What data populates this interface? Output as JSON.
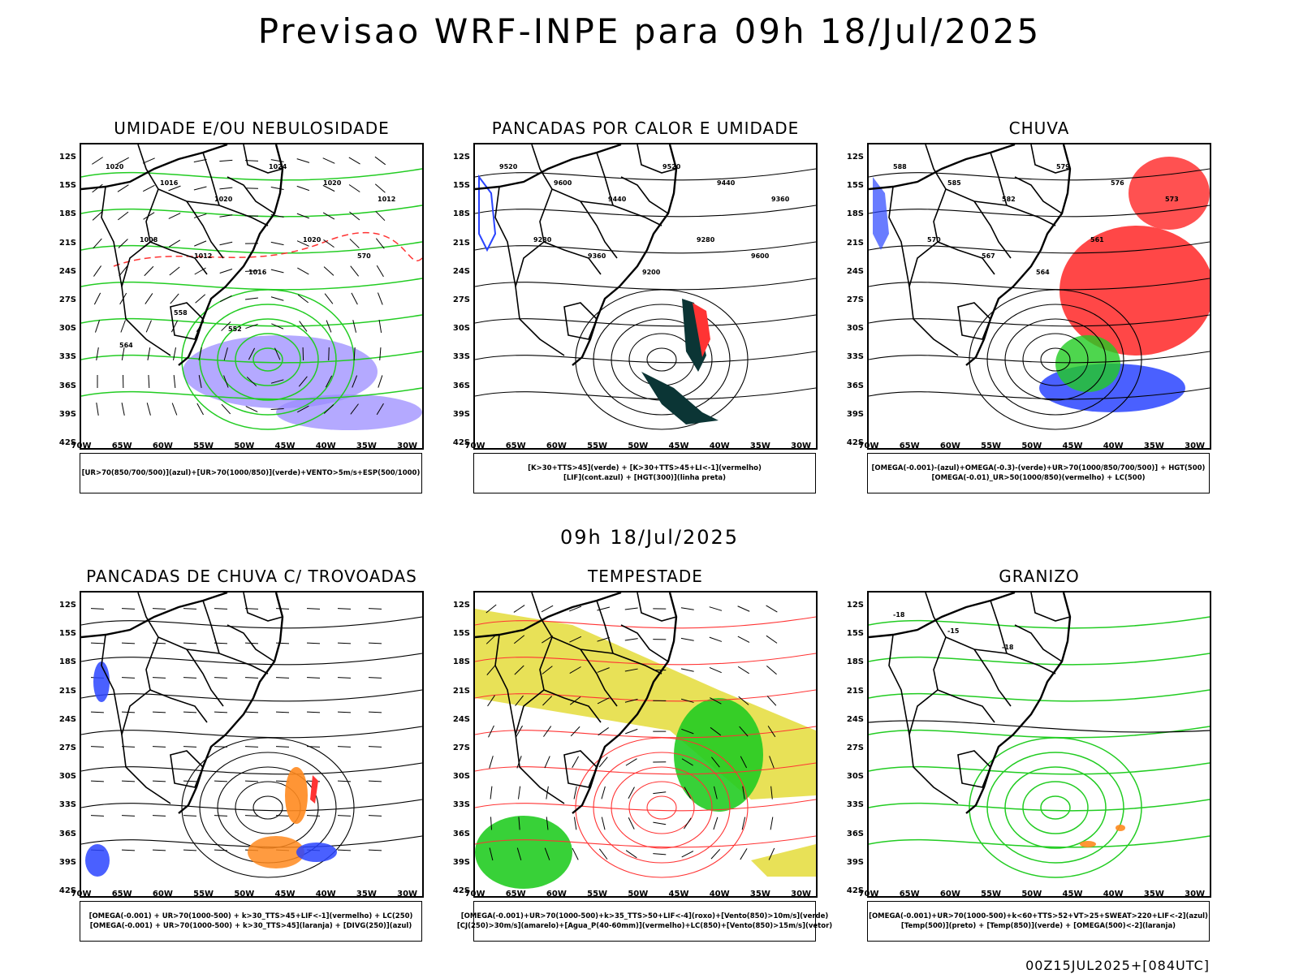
{
  "title": "Previsao WRF-INPE  para 09h 18/Jul/2025",
  "mid_title": "09h 18/Jul/2025",
  "footer": "00Z15JUL2025+[084UTC]",
  "lat_ticks": [
    "12S",
    "15S",
    "18S",
    "21S",
    "24S",
    "27S",
    "30S",
    "33S",
    "36S",
    "39S",
    "42S"
  ],
  "lon_ticks": [
    "70W",
    "65W",
    "60W",
    "55W",
    "50W",
    "45W",
    "40W",
    "35W",
    "30W"
  ],
  "panels": [
    {
      "title": "UMIDADE E/OU NEBULOSIDADE",
      "legend": [
        "[UR>70(850/700/500)](azul)+[UR>70(1000/850)](verde)+VENTO>5m/s+ESP(500/1000)"
      ],
      "contour_labels": [
        "1020",
        "1016",
        "1020",
        "1024",
        "1020",
        "1012",
        "1008",
        "1012",
        "1016",
        "1020",
        "570",
        "564",
        "558",
        "552"
      ]
    },
    {
      "title": "PANCADAS POR CALOR E UMIDADE",
      "legend": [
        "[K>30+TTS>45](verde) + [K>30+TTS>45+LI<-1](vermelho)",
        "[LIF](cont.azul) + [HGT(300)](linha preta)"
      ],
      "contour_labels": [
        "9520",
        "9600",
        "9440",
        "9520",
        "9440",
        "9360",
        "9280",
        "9360",
        "9200",
        "9280",
        "9600"
      ]
    },
    {
      "title": "CHUVA",
      "legend": [
        "[OMEGA(-0.001)-(azul)+OMEGA(-0.3)-(verde)+UR>70(1000/850/700/500)] + HGT(500)",
        "[OMEGA(-0.01)_UR>50(1000/850)(vermelho) + LC(500)"
      ],
      "contour_labels": [
        "588",
        "585",
        "582",
        "579",
        "576",
        "573",
        "570",
        "567",
        "564",
        "561"
      ]
    },
    {
      "title": "PANCADAS DE CHUVA C/ TROVOADAS",
      "legend": [
        "[OMEGA(-0.001) + UR>70(1000-500) + k>30_TTS>45+LIF<-1](vermelho) + LC(250)",
        "[OMEGA(-0.001) + UR>70(1000-500) + k>30_TTS>45](laranja) + [DIVG(250)](azul)"
      ]
    },
    {
      "title": "TEMPESTADE",
      "legend": [
        "[OMEGA(-0.001)+UR>70(1000-500)+k>35_TTS>50+LIF<-4](roxo)+[Vento(850)>10m/s](verde)",
        "[CJ(250)>30m/s](amarelo)+[Agua_P(40-60mm)](vermelho)+LC(850)+[Vento(850)>15m/s](vetor)"
      ]
    },
    {
      "title": "GRANIZO",
      "legend": [
        "[OMEGA(-0.001)+UR>70(1000-500)+k<60+TTS>52+VT>25+SWEAT>220+LIF<-2](azul)",
        "[Temp(500)](preto) + [Temp(850)](verde) + [OMEGA(500)<-2](laranja)"
      ],
      "contour_labels": [
        "-18",
        "-15",
        "-18"
      ]
    }
  ],
  "colors": {
    "blue": "#2a44ff",
    "green": "#22cc22",
    "red": "#ff3333",
    "orange": "#ff8a1f",
    "yellow": "#e4dc3a",
    "dark": "#0b3535",
    "purple": "#9b8cff"
  }
}
